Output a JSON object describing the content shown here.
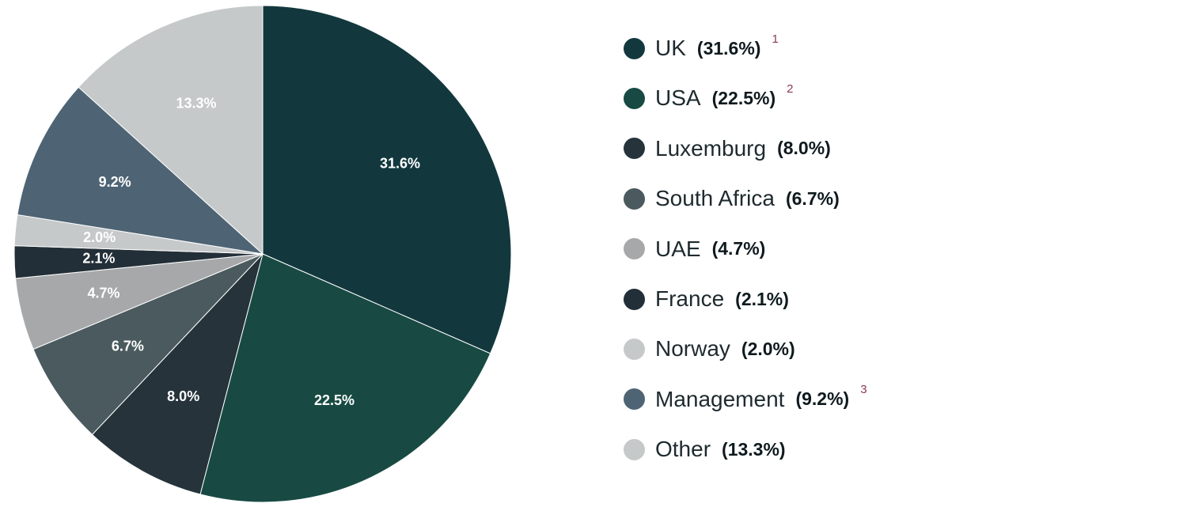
{
  "chart_data": {
    "type": "pie",
    "start_angle_deg": 0,
    "direction": "clockwise",
    "slices": [
      {
        "label": "UK",
        "value": 31.6,
        "value_label": "31.6%",
        "legend_pct": "(31.6%)",
        "note": "1",
        "color": "#12383e"
      },
      {
        "label": "USA",
        "value": 22.5,
        "value_label": "22.5%",
        "legend_pct": "(22.5%)",
        "note": "2",
        "color": "#184a43"
      },
      {
        "label": "Luxemburg",
        "value": 8.0,
        "value_label": "8.0%",
        "legend_pct": "(8.0%)",
        "note": "",
        "color": "#26333b"
      },
      {
        "label": "South Africa",
        "value": 6.7,
        "value_label": "6.7%",
        "legend_pct": "(6.7%)",
        "note": "",
        "color": "#4a5a5e"
      },
      {
        "label": "UAE",
        "value": 4.7,
        "value_label": "4.7%",
        "legend_pct": "(4.7%)",
        "note": "",
        "color": "#a6a8a9"
      },
      {
        "label": "France",
        "value": 2.1,
        "value_label": "2.1%",
        "legend_pct": "(2.1%)",
        "note": "",
        "color": "#232f38"
      },
      {
        "label": "Norway",
        "value": 2.0,
        "value_label": "2.0%",
        "legend_pct": "(2.0%)",
        "note": "",
        "color": "#c6c9ca"
      },
      {
        "label": "Management",
        "value": 9.2,
        "value_label": "9.2%",
        "legend_pct": "(9.2%)",
        "note": "3",
        "color": "#4e6474"
      },
      {
        "label": "Other",
        "value": 13.3,
        "value_label": "13.3%",
        "legend_pct": "(13.3%)",
        "note": "",
        "color": "#c6c9ca"
      }
    ],
    "legend_position": "right"
  }
}
